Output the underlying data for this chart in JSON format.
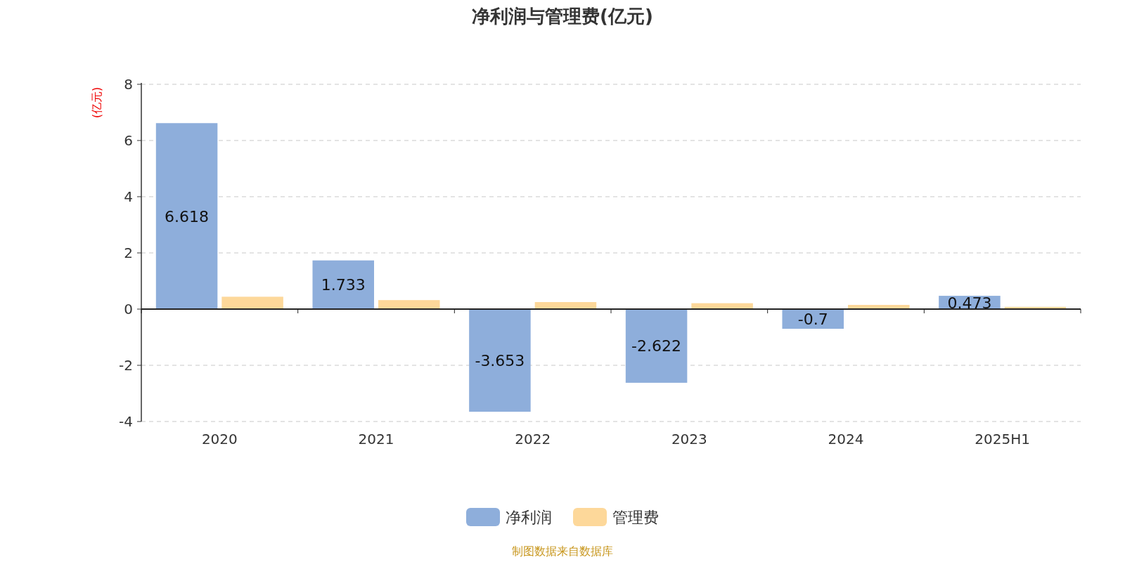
{
  "chart_data": {
    "type": "bar",
    "title": "净利润与管理费(亿元)",
    "ylabel": "(亿元)",
    "categories": [
      "2020",
      "2021",
      "2022",
      "2023",
      "2024",
      "2025H1"
    ],
    "series": [
      {
        "name": "净利润",
        "color": "#8eaedb",
        "values": [
          6.618,
          1.733,
          -3.653,
          -2.622,
          -0.7,
          0.473
        ],
        "value_labels": [
          "6.618",
          "1.733",
          "-3.653",
          "-2.622",
          "-0.7",
          "0.473"
        ]
      },
      {
        "name": "管理费",
        "color": "#fdd89a",
        "values": [
          0.44,
          0.32,
          0.25,
          0.21,
          0.15,
          0.08
        ]
      }
    ],
    "ylim": [
      -4,
      8
    ],
    "yticks": [
      -4,
      -2,
      0,
      2,
      4,
      6,
      8
    ],
    "grid": "y",
    "legend": "bottom",
    "annotations": [
      "制图数据来自数据库"
    ]
  }
}
